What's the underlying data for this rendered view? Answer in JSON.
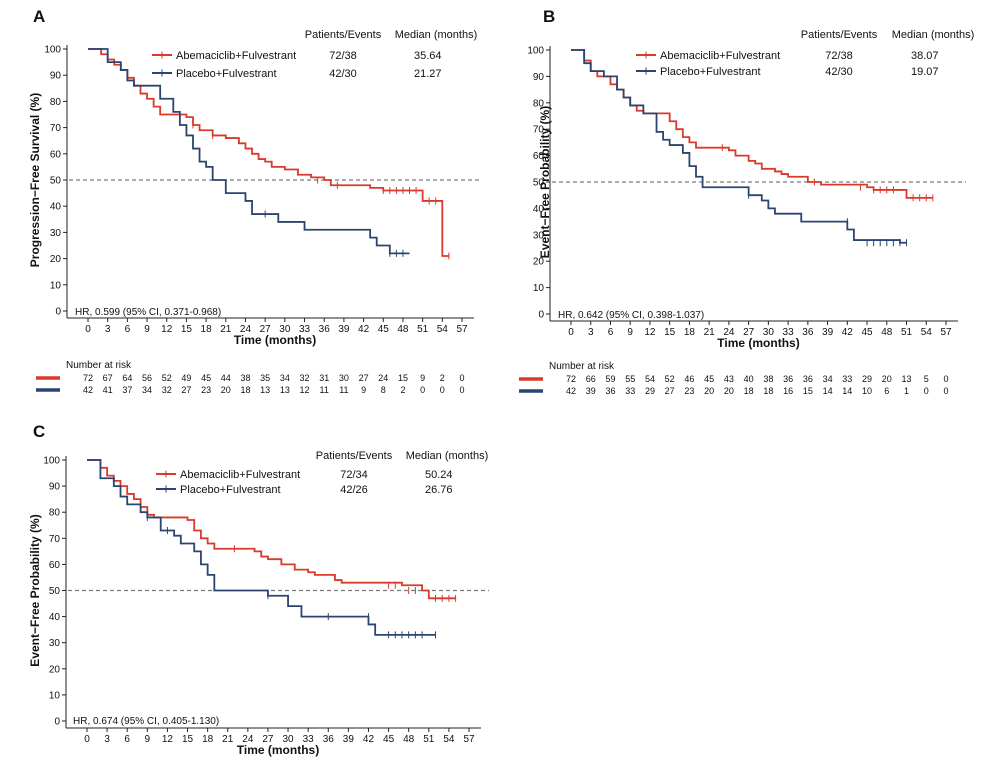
{
  "colors": {
    "abemaciclib": "#d93a2b",
    "placebo": "#2c4470",
    "axis": "#222222",
    "reference_line": "#7a7a7a"
  },
  "legend_header": {
    "patients_events": "Patients/Events",
    "median": "Median (months)"
  },
  "risk_header": "Number at risk",
  "chart_data": [
    {
      "panel": "A",
      "type": "line",
      "subtype": "kaplan-meier",
      "xlabel": "Time (months)",
      "ylabel": "Progression−Free Survival (%)",
      "xlim": [
        0,
        57
      ],
      "ylim": [
        0,
        100
      ],
      "xticks": [
        0,
        3,
        6,
        9,
        12,
        15,
        18,
        21,
        24,
        27,
        30,
        33,
        36,
        39,
        42,
        45,
        48,
        51,
        54,
        57
      ],
      "yticks": [
        0,
        10,
        20,
        30,
        40,
        50,
        60,
        70,
        80,
        90,
        100
      ],
      "reference_line": 50,
      "hr_text": "HR, 0.599 (95% CI, 0.371-0.968)",
      "series": [
        {
          "name": "Abemaciclib+Fulvestrant",
          "key": "abemaciclib",
          "patients_events": "72/38",
          "median": "35.64",
          "steps": [
            [
              0,
              100
            ],
            [
              2,
              98
            ],
            [
              3,
              96
            ],
            [
              4,
              94
            ],
            [
              5,
              92
            ],
            [
              6,
              89
            ],
            [
              7,
              86
            ],
            [
              8,
              83
            ],
            [
              9,
              81
            ],
            [
              10,
              78
            ],
            [
              11,
              75
            ],
            [
              15,
              74
            ],
            [
              16,
              71
            ],
            [
              17,
              69
            ],
            [
              19,
              67
            ],
            [
              21,
              66
            ],
            [
              23,
              64
            ],
            [
              24,
              62
            ],
            [
              25,
              60
            ],
            [
              26,
              58
            ],
            [
              27,
              57
            ],
            [
              28,
              55
            ],
            [
              30,
              54
            ],
            [
              32,
              52
            ],
            [
              34,
              51
            ],
            [
              36,
              50
            ],
            [
              37,
              48
            ],
            [
              43,
              47
            ],
            [
              45,
              46
            ],
            [
              51,
              42
            ],
            [
              54,
              21
            ],
            [
              55,
              21
            ]
          ],
          "censors": [
            [
              16,
              71
            ],
            [
              19,
              67
            ],
            [
              35,
              50
            ],
            [
              38,
              48
            ],
            [
              45,
              46
            ],
            [
              46,
              46
            ],
            [
              47,
              46
            ],
            [
              48,
              46
            ],
            [
              49,
              46
            ],
            [
              50,
              46
            ],
            [
              52,
              42
            ],
            [
              53,
              42
            ],
            [
              55,
              21
            ]
          ],
          "at_risk": [
            72,
            67,
            64,
            56,
            52,
            49,
            45,
            44,
            38,
            35,
            34,
            32,
            31,
            30,
            27,
            24,
            15,
            9,
            2,
            0
          ]
        },
        {
          "name": "Placebo+Fulvestrant",
          "key": "placebo",
          "patients_events": "42/30",
          "median": "21.27",
          "steps": [
            [
              0,
              100
            ],
            [
              3,
              95
            ],
            [
              5,
              92
            ],
            [
              6,
              88
            ],
            [
              7,
              86
            ],
            [
              11,
              81
            ],
            [
              13,
              76
            ],
            [
              14,
              71
            ],
            [
              15,
              67
            ],
            [
              16,
              62
            ],
            [
              17,
              57
            ],
            [
              18,
              55
            ],
            [
              19,
              50
            ],
            [
              21,
              45
            ],
            [
              24,
              42
            ],
            [
              25,
              37
            ],
            [
              27,
              37
            ],
            [
              29,
              34
            ],
            [
              33,
              31
            ],
            [
              43,
              28
            ],
            [
              44,
              25
            ],
            [
              46,
              22
            ],
            [
              49,
              22
            ]
          ],
          "censors": [
            [
              27,
              37
            ],
            [
              46,
              22
            ],
            [
              47,
              22
            ],
            [
              48,
              22
            ]
          ],
          "at_risk": [
            42,
            41,
            37,
            34,
            32,
            27,
            23,
            20,
            18,
            13,
            13,
            12,
            11,
            11,
            9,
            8,
            2,
            0,
            0,
            0
          ]
        }
      ]
    },
    {
      "panel": "B",
      "type": "line",
      "subtype": "kaplan-meier",
      "xlabel": "Time (months)",
      "ylabel": "Event−Free Probability (%)",
      "xlim": [
        0,
        57
      ],
      "ylim": [
        0,
        100
      ],
      "xticks": [
        0,
        3,
        6,
        9,
        12,
        15,
        18,
        21,
        24,
        27,
        30,
        33,
        36,
        39,
        42,
        45,
        48,
        51,
        54,
        57
      ],
      "yticks": [
        0,
        10,
        20,
        30,
        40,
        50,
        60,
        70,
        80,
        90,
        100
      ],
      "reference_line": 50,
      "hr_text": "HR, 0.642 (95% CI, 0.398-1.037)",
      "series": [
        {
          "name": "Abemaciclib+Fulvestrant",
          "key": "abemaciclib",
          "patients_events": "72/38",
          "median": "38.07",
          "steps": [
            [
              0,
              100
            ],
            [
              2,
              96
            ],
            [
              3,
              92
            ],
            [
              4,
              90
            ],
            [
              6,
              87
            ],
            [
              7,
              85
            ],
            [
              8,
              82
            ],
            [
              9,
              79
            ],
            [
              10,
              77
            ],
            [
              11,
              76
            ],
            [
              15,
              73
            ],
            [
              16,
              70
            ],
            [
              17,
              67
            ],
            [
              18,
              65
            ],
            [
              19,
              63
            ],
            [
              24,
              62
            ],
            [
              25,
              60
            ],
            [
              27,
              58
            ],
            [
              28,
              57
            ],
            [
              29,
              55
            ],
            [
              31,
              54
            ],
            [
              32,
              53
            ],
            [
              33,
              52
            ],
            [
              36,
              50
            ],
            [
              38,
              49
            ],
            [
              45,
              48
            ],
            [
              46,
              47
            ],
            [
              51,
              44
            ],
            [
              55,
              44
            ]
          ],
          "censors": [
            [
              23,
              63
            ],
            [
              37,
              50
            ],
            [
              44,
              48
            ],
            [
              46,
              47
            ],
            [
              47,
              47
            ],
            [
              48,
              47
            ],
            [
              49,
              47
            ],
            [
              52,
              44
            ],
            [
              53,
              44
            ],
            [
              54,
              44
            ],
            [
              55,
              44
            ]
          ],
          "at_risk": [
            72,
            66,
            59,
            55,
            54,
            52,
            46,
            45,
            43,
            40,
            38,
            36,
            36,
            34,
            33,
            29,
            20,
            13,
            5,
            0
          ]
        },
        {
          "name": "Placebo+Fulvestrant",
          "key": "placebo",
          "patients_events": "42/30",
          "median": "19.07",
          "steps": [
            [
              0,
              100
            ],
            [
              2,
              95
            ],
            [
              3,
              92
            ],
            [
              5,
              90
            ],
            [
              7,
              85
            ],
            [
              8,
              82
            ],
            [
              9,
              79
            ],
            [
              11,
              76
            ],
            [
              13,
              69
            ],
            [
              14,
              66
            ],
            [
              15,
              64
            ],
            [
              17,
              61
            ],
            [
              18,
              56
            ],
            [
              19,
              52
            ],
            [
              20,
              48
            ],
            [
              27,
              45
            ],
            [
              29,
              43
            ],
            [
              30,
              40
            ],
            [
              31,
              38
            ],
            [
              35,
              35
            ],
            [
              42,
              32
            ],
            [
              43,
              28
            ],
            [
              50,
              27
            ],
            [
              51,
              27
            ]
          ],
          "censors": [
            [
              27,
              45
            ],
            [
              42,
              35
            ],
            [
              45,
              27
            ],
            [
              46,
              27
            ],
            [
              47,
              27
            ],
            [
              48,
              27
            ],
            [
              49,
              27
            ],
            [
              50,
              27
            ],
            [
              51,
              27
            ]
          ],
          "at_risk": [
            42,
            39,
            36,
            33,
            29,
            27,
            23,
            20,
            20,
            18,
            18,
            16,
            15,
            14,
            14,
            10,
            6,
            1,
            0,
            0
          ]
        }
      ]
    },
    {
      "panel": "C",
      "type": "line",
      "subtype": "kaplan-meier",
      "xlabel": "Time (months)",
      "ylabel": "Event−Free Probability (%)",
      "xlim": [
        0,
        57
      ],
      "ylim": [
        0,
        100
      ],
      "xticks": [
        0,
        3,
        6,
        9,
        12,
        15,
        18,
        21,
        24,
        27,
        30,
        33,
        36,
        39,
        42,
        45,
        48,
        51,
        54,
        57
      ],
      "yticks": [
        0,
        10,
        20,
        30,
        40,
        50,
        60,
        70,
        80,
        90,
        100
      ],
      "reference_line": 50,
      "hr_text": "HR, 0.674 (95% CI, 0.405-1.130)",
      "series": [
        {
          "name": "Abemaciclib+Fulvestrant",
          "key": "abemaciclib",
          "patients_events": "72/34",
          "median": "50.24",
          "steps": [
            [
              0,
              100
            ],
            [
              2,
              97
            ],
            [
              3,
              94
            ],
            [
              4,
              92
            ],
            [
              5,
              90
            ],
            [
              6,
              87
            ],
            [
              7,
              85
            ],
            [
              8,
              82
            ],
            [
              9,
              79
            ],
            [
              10,
              78
            ],
            [
              15,
              77
            ],
            [
              16,
              73
            ],
            [
              17,
              70
            ],
            [
              18,
              68
            ],
            [
              19,
              66
            ],
            [
              25,
              65
            ],
            [
              26,
              63
            ],
            [
              27,
              62
            ],
            [
              29,
              60
            ],
            [
              31,
              58
            ],
            [
              33,
              57
            ],
            [
              34,
              56
            ],
            [
              37,
              54
            ],
            [
              38,
              53
            ],
            [
              47,
              52
            ],
            [
              50,
              50
            ],
            [
              51,
              47
            ],
            [
              55,
              47
            ]
          ],
          "censors": [
            [
              22,
              66
            ],
            [
              45,
              52
            ],
            [
              46,
              52
            ],
            [
              48,
              50
            ],
            [
              49,
              50
            ],
            [
              52,
              47
            ],
            [
              53,
              47
            ],
            [
              54,
              47
            ],
            [
              55,
              47
            ]
          ],
          "at_risk": []
        },
        {
          "name": "Placebo+Fulvestrant",
          "key": "placebo",
          "patients_events": "42/26",
          "median": "26.76",
          "steps": [
            [
              0,
              100
            ],
            [
              2,
              93
            ],
            [
              4,
              90
            ],
            [
              5,
              86
            ],
            [
              6,
              83
            ],
            [
              8,
              80
            ],
            [
              9,
              78
            ],
            [
              11,
              73
            ],
            [
              13,
              71
            ],
            [
              14,
              68
            ],
            [
              16,
              65
            ],
            [
              17,
              60
            ],
            [
              18,
              56
            ],
            [
              19,
              50
            ],
            [
              27,
              48
            ],
            [
              30,
              44
            ],
            [
              32,
              40
            ],
            [
              42,
              37
            ],
            [
              43,
              33
            ],
            [
              52,
              33
            ]
          ],
          "censors": [
            [
              9,
              78
            ],
            [
              12,
              73
            ],
            [
              27,
              48
            ],
            [
              36,
              40
            ],
            [
              42,
              40
            ],
            [
              45,
              33
            ],
            [
              46,
              33
            ],
            [
              47,
              33
            ],
            [
              48,
              33
            ],
            [
              49,
              33
            ],
            [
              50,
              33
            ],
            [
              52,
              33
            ]
          ],
          "at_risk": []
        }
      ]
    }
  ]
}
